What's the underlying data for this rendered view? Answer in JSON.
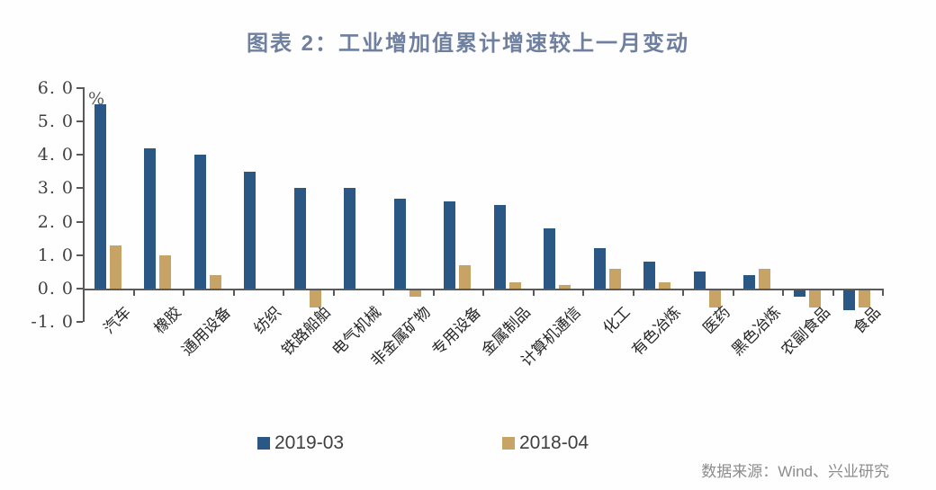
{
  "title": "图表 2：工业增加值累计增速较上一月变动",
  "chart_data": {
    "type": "bar",
    "title": "图表 2：工业增加值累计增速较上一月变动",
    "unit_label": "%",
    "categories": [
      "汽车",
      "橡胶",
      "通用设备",
      "纺织",
      "铁路船舶",
      "电气机械",
      "非金属矿物",
      "专用设备",
      "金属制品",
      "计算机通信",
      "化工",
      "有色冶炼",
      "医药",
      "黑色冶炼",
      "农副食品",
      "食品"
    ],
    "series": [
      {
        "name": "2019-03",
        "color": "#2a5783",
        "values": [
          5.5,
          4.2,
          4.0,
          3.5,
          3.0,
          3.0,
          2.7,
          2.6,
          2.5,
          1.8,
          1.2,
          0.8,
          0.5,
          0.4,
          -0.2,
          -0.6
        ]
      },
      {
        "name": "2018-04",
        "color": "#c7a465",
        "values": [
          1.3,
          1.0,
          0.4,
          0.0,
          -0.5,
          0.0,
          -0.2,
          0.7,
          0.2,
          0.1,
          0.6,
          0.2,
          -0.5,
          0.6,
          -0.5,
          -0.5
        ]
      }
    ],
    "ylim": [
      -1.0,
      6.0
    ],
    "yticks": [
      6.0,
      5.0,
      4.0,
      3.0,
      2.0,
      1.0,
      0.0,
      -1.0
    ],
    "ytick_labels": [
      "6. 0",
      "5. 0",
      "4. 0",
      "3. 0",
      "2. 0",
      "1. 0",
      "0. 0",
      "-1. 0"
    ],
    "grid": false,
    "legend_position": "bottom"
  },
  "legend": {
    "items": [
      {
        "label": "2019-03",
        "color": "#2a5783"
      },
      {
        "label": "2018-04",
        "color": "#c7a465"
      }
    ]
  },
  "footer": {
    "source": "数据来源：Wind、兴业研究"
  }
}
